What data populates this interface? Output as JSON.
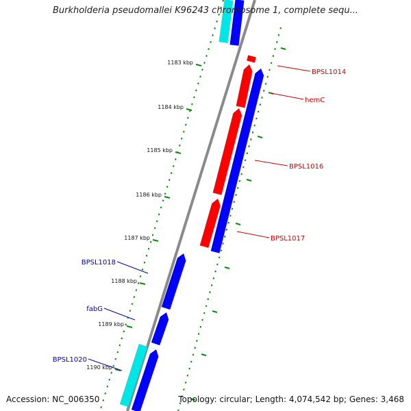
{
  "title": "Burkholderia pseudomallei K96243 chromosome 1, complete sequ...",
  "accession": "Accession: NC_006350",
  "summary": "Topology: circular; Length: 4,074,542 bp; Genes: 3,468",
  "colors": {
    "forward_cds": "#ff0000",
    "reverse_cds": "#0000ff",
    "cyan_feature": "#00e5e5",
    "backbone": "#8a8a8a",
    "ticks": "#0a8a0a",
    "forward_label": "#cc0000",
    "reverse_label": "#0000aa"
  },
  "ruler": {
    "labels": [
      {
        "kbp": 1183,
        "text": "1183 kbp"
      },
      {
        "kbp": 1184,
        "text": "1184 kbp"
      },
      {
        "kbp": 1185,
        "text": "1185 kbp"
      },
      {
        "kbp": 1186,
        "text": "1186 kbp"
      },
      {
        "kbp": 1187,
        "text": "1187 kbp"
      },
      {
        "kbp": 1188,
        "text": "1188 kbp"
      },
      {
        "kbp": 1189,
        "text": "1189 kbp"
      },
      {
        "kbp": 1190,
        "text": "1190 kbp"
      }
    ]
  },
  "genes": [
    {
      "name": "BPSL1014",
      "strand": "forward"
    },
    {
      "name": "hemC",
      "strand": "forward"
    },
    {
      "name": "BPSL1016",
      "strand": "forward"
    },
    {
      "name": "BPSL1017",
      "strand": "forward"
    },
    {
      "name": "BPSL1018",
      "strand": "reverse"
    },
    {
      "name": "fabG",
      "strand": "reverse"
    },
    {
      "name": "BPSL1020",
      "strand": "reverse"
    }
  ]
}
